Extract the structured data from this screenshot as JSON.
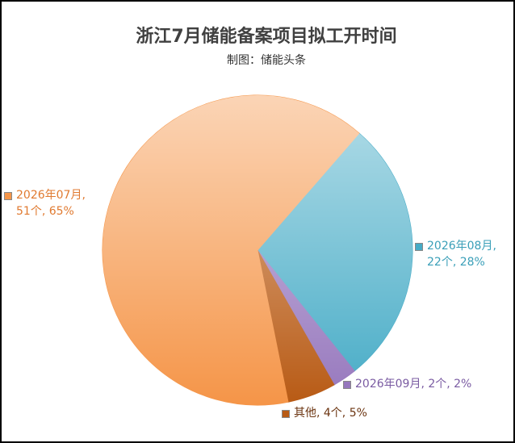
{
  "chart_data": {
    "type": "pie",
    "title": "浙江7月储能备案项目拟工开时间",
    "subtitle": "制图：储能头条",
    "categories": [
      "2026年08月",
      "2026年09月",
      "其他",
      "2026年07月"
    ],
    "values": [
      22,
      2,
      4,
      51
    ],
    "value_labels": [
      "2026年08月, 22个, 28%",
      "2026年09月, 2个, 2%",
      "其他, 4个, 5%",
      "2026年07月, 51个, 65%"
    ],
    "colors": [
      "#45abc6",
      "#9677bd",
      "#b85a14",
      "#f59548"
    ]
  }
}
